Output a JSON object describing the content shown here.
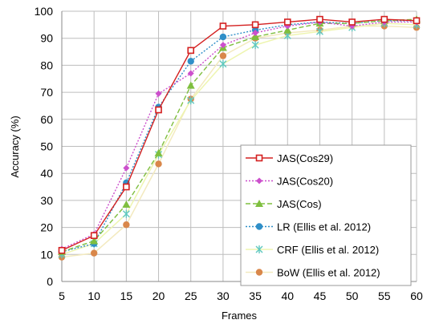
{
  "chart_data": {
    "type": "line",
    "title": "",
    "xlabel": "Frames",
    "ylabel": "Accuracy (%)",
    "x": [
      5,
      10,
      15,
      20,
      25,
      30,
      35,
      40,
      45,
      50,
      55,
      60
    ],
    "xlim": [
      5,
      60
    ],
    "ylim": [
      0,
      100
    ],
    "yticks": [
      0,
      10,
      20,
      30,
      40,
      50,
      60,
      70,
      80,
      90,
      100
    ],
    "grid": true,
    "legend_position": "bottom-right",
    "series": [
      {
        "name": "JAS(Cos29)",
        "color": "#d42020",
        "dash": "solid",
        "marker": "square-open",
        "values": [
          11.5,
          17,
          35,
          63.5,
          85.5,
          94.5,
          95,
          96,
          97,
          96,
          97,
          96.5
        ]
      },
      {
        "name": "JAS(Cos20)",
        "color": "#cc4fcc",
        "dash": "dotted",
        "marker": "diamond",
        "values": [
          12,
          17.5,
          42,
          69.5,
          77,
          87.5,
          92,
          94.5,
          96,
          94.5,
          96,
          96
        ]
      },
      {
        "name": "JAS(Cos)",
        "color": "#7fbf3f",
        "dash": "dashed",
        "marker": "triangle",
        "values": [
          11,
          15,
          28.5,
          47.5,
          72.5,
          86.5,
          90.5,
          93,
          95.5,
          95.5,
          96.5,
          97
        ]
      },
      {
        "name": "LR (Ellis et al. 2012)",
        "color": "#2f8fc8",
        "dash": "dotted",
        "marker": "circle",
        "values": [
          11,
          14,
          36.5,
          64.5,
          81.5,
          90.5,
          93,
          95,
          96,
          95.5,
          96.5,
          96.5
        ]
      },
      {
        "name": "CRF (Ellis et al. 2012)",
        "color": "#5fc8c0",
        "dash": "solid",
        "marker": "star",
        "values": [
          10,
          14,
          25,
          47,
          67,
          80.5,
          87.5,
          91,
          92.5,
          94,
          95.5,
          95
        ]
      },
      {
        "name": "BoW (Ellis et al. 2012)",
        "color": "#d9874a",
        "dash": "solid",
        "marker": "circle",
        "values": [
          9,
          10.5,
          21,
          43.5,
          67.5,
          83.5,
          90,
          92,
          93,
          94.5,
          94.5,
          94
        ]
      }
    ]
  }
}
